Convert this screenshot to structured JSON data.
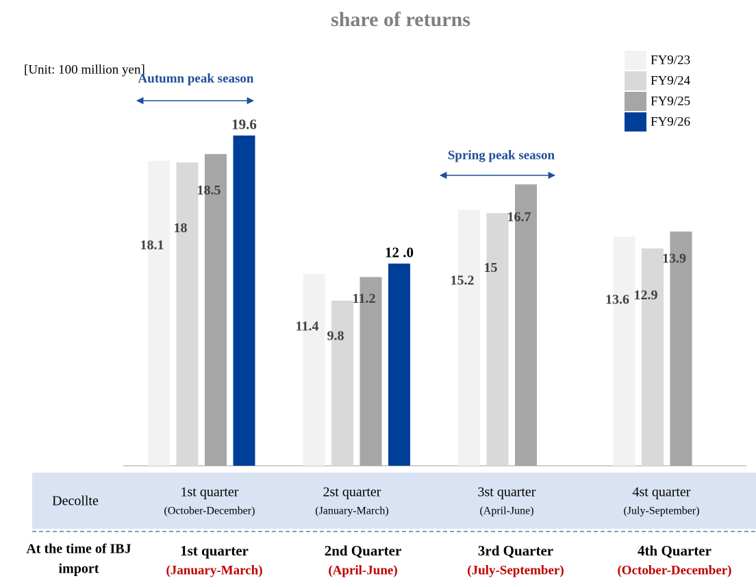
{
  "chart_data": {
    "type": "bar",
    "title": "share of returns",
    "unit_label": "[Unit: 100 million yen]",
    "annotations": [
      "Autumn peak season",
      "Spring peak season"
    ],
    "categories": [
      "1st quarter",
      "2st quarter",
      "3st quarter",
      "4st quarter"
    ],
    "category_periods": [
      "(October-December)",
      "(January-March)",
      "(April-June)",
      "(July-September)"
    ],
    "category_row_label": "Decollte",
    "import_row_label": [
      "At the time of IBJ",
      "import"
    ],
    "import_quarters": [
      "1st quarter",
      "2nd Quarter",
      "3rd Quarter",
      "4th Quarter"
    ],
    "import_periods": [
      "(January-March)",
      "(April-June)",
      "(July-September)",
      "(October-December)"
    ],
    "ylim": [
      0,
      20
    ],
    "series": [
      {
        "name": "FY9/23",
        "color": "#f2f2f2",
        "values": [
          18.1,
          11.4,
          15.2,
          13.6
        ]
      },
      {
        "name": "FY9/24",
        "color": "#d9d9d9",
        "values": [
          18.0,
          9.8,
          15.0,
          12.9
        ]
      },
      {
        "name": "FY9/25",
        "color": "#a6a6a6",
        "values": [
          18.5,
          11.2,
          16.7,
          13.9
        ]
      },
      {
        "name": "FY9/26",
        "color": "#003f98",
        "values": [
          19.6,
          12.0,
          null,
          null
        ],
        "value_labels": [
          "19.6",
          "12 .0",
          null,
          null
        ]
      }
    ]
  }
}
